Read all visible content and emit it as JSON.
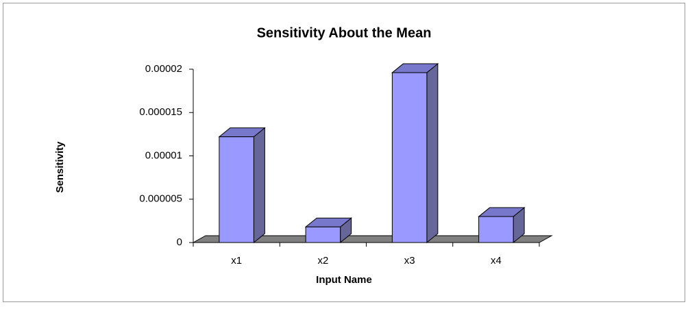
{
  "chart_data": {
    "type": "bar3d",
    "title": "Sensitivity About the Mean",
    "x_label": "Input Name",
    "y_label": "Sensitivity",
    "categories": [
      "x1",
      "x2",
      "x3",
      "x4"
    ],
    "values": [
      1.22e-05,
      1.8e-06,
      1.96e-05,
      3e-06
    ],
    "color": "#9999ff",
    "ylim": [
      0,
      2e-05
    ],
    "yticks": [
      0,
      5e-06,
      1e-05,
      1.5e-05,
      2e-05
    ],
    "grid": false
  }
}
